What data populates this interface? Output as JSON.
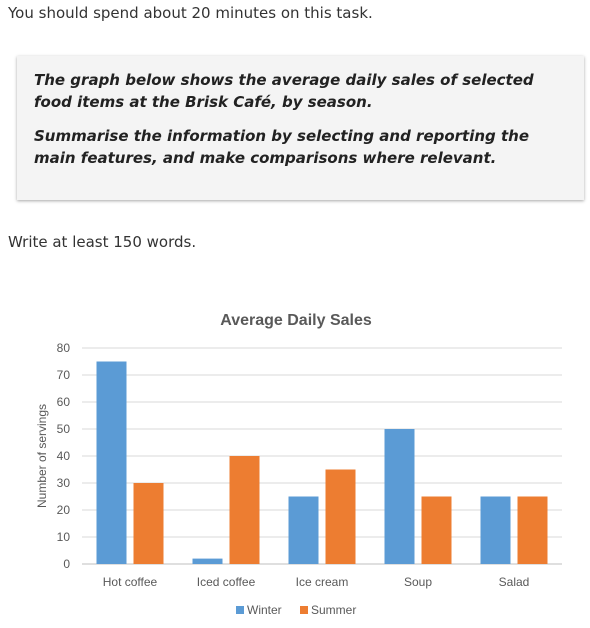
{
  "instructions": {
    "time_note": "You should spend about 20 minutes on this task.",
    "prompt_line1": "The graph below shows the average daily sales of selected food items at the Brisk Café, by season.",
    "prompt_line2": "Summarise the information by selecting and reporting the main features, and make comparisons where relevant.",
    "word_count_note": "Write at least 150 words."
  },
  "chart_data": {
    "type": "bar",
    "title": "Average Daily Sales",
    "xlabel": "",
    "ylabel": "Number of servings",
    "ylim": [
      0,
      80
    ],
    "yticks": [
      0,
      10,
      20,
      30,
      40,
      50,
      60,
      70,
      80
    ],
    "grid": true,
    "legend_position": "bottom",
    "categories": [
      "Hot coffee",
      "Iced coffee",
      "Ice cream",
      "Soup",
      "Salad"
    ],
    "series": [
      {
        "name": "Winter",
        "color": "#5b9bd5",
        "values": [
          75,
          2,
          25,
          50,
          25
        ]
      },
      {
        "name": "Summer",
        "color": "#ed7d31",
        "values": [
          30,
          40,
          35,
          25,
          25
        ]
      }
    ]
  }
}
